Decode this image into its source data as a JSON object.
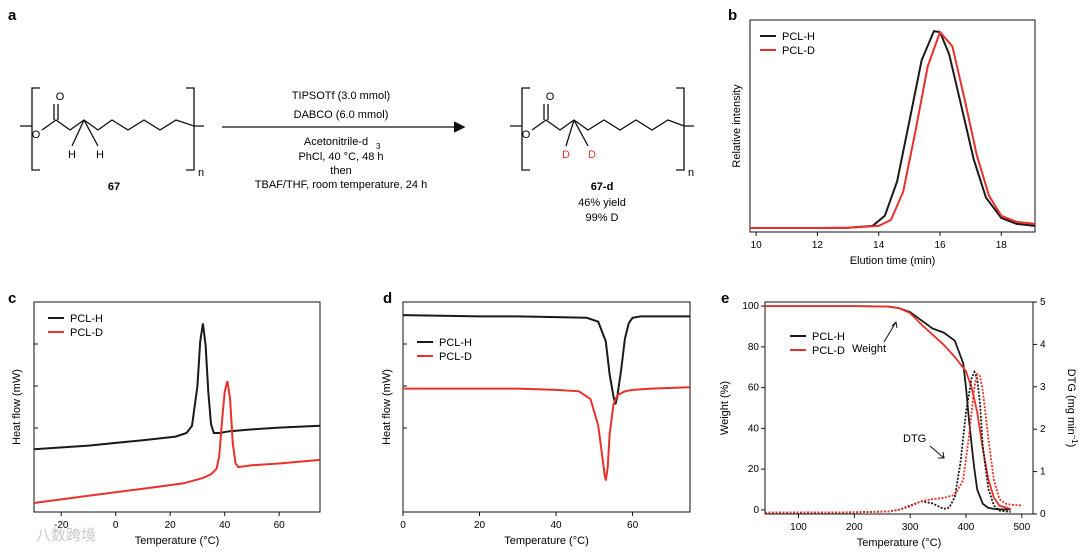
{
  "panel_letters": {
    "a": "a",
    "b": "b",
    "c": "c",
    "d": "d",
    "e": "e"
  },
  "scheme": {
    "reactant_label": "67",
    "product_label": "67-d",
    "subscript_n": "n",
    "atom_O": "O",
    "atom_H": "H",
    "atom_D": "D",
    "conditions": [
      "TIPSOTf (3.0 mmol)",
      "DABCO (6.0 mmol)",
      "Acetonitrile-d",
      "PhCl, 40 °C, 48 h",
      "then",
      "TBAF/THF, room temperature, 24 h"
    ],
    "conditions_sub": "3",
    "yield": "46% yield",
    "deuteration": "99% D"
  },
  "colors": {
    "pcl_h": "#1a1a1a",
    "pcl_d": "#e8312a"
  },
  "watermark": "八数跨境",
  "chart_data": [
    {
      "id": "b",
      "type": "line",
      "xlabel": "Elution time (min)",
      "ylabel": "Relative intensity",
      "xlim": [
        9.8,
        19.1
      ],
      "xticks": [
        10,
        12,
        14,
        16,
        18
      ],
      "legend_position": "top-left",
      "series": [
        {
          "name": "PCL-H",
          "x": [
            9.8,
            12,
            13,
            13.8,
            14.2,
            14.6,
            15,
            15.4,
            15.8,
            16.0,
            16.3,
            16.7,
            17.1,
            17.5,
            18,
            18.5,
            19.1
          ],
          "y": [
            0.02,
            0.02,
            0.021,
            0.03,
            0.08,
            0.25,
            0.55,
            0.85,
            0.995,
            0.99,
            0.88,
            0.62,
            0.36,
            0.17,
            0.07,
            0.04,
            0.03
          ]
        },
        {
          "name": "PCL-D",
          "x": [
            9.8,
            12,
            13,
            14,
            14.4,
            14.8,
            15.2,
            15.6,
            16.0,
            16.4,
            16.8,
            17.2,
            17.6,
            18,
            18.5,
            19.1
          ],
          "y": [
            0.02,
            0.02,
            0.021,
            0.03,
            0.06,
            0.2,
            0.5,
            0.82,
            0.99,
            0.92,
            0.66,
            0.38,
            0.18,
            0.08,
            0.05,
            0.04
          ]
        }
      ]
    },
    {
      "id": "c",
      "type": "line",
      "xlabel": "Temperature (°C)",
      "ylabel": "Heat flow (mW)",
      "xlim": [
        -30,
        75
      ],
      "xticks": [
        -20,
        0,
        20,
        40,
        60
      ],
      "legend_position": "top-left",
      "series": [
        {
          "name": "PCL-H",
          "x": [
            -30,
            -10,
            10,
            22,
            26,
            28,
            30,
            31,
            32,
            33,
            34,
            35,
            36,
            38,
            42,
            50,
            60,
            75
          ],
          "y": [
            0.0,
            0.02,
            0.05,
            0.07,
            0.09,
            0.13,
            0.35,
            0.6,
            0.7,
            0.58,
            0.32,
            0.14,
            0.09,
            0.09,
            0.1,
            0.11,
            0.12,
            0.13
          ]
        },
        {
          "name": "PCL-D",
          "x": [
            -30,
            -10,
            10,
            25,
            32,
            35,
            37,
            38,
            39,
            40,
            41,
            42,
            43,
            44,
            45,
            50,
            60,
            75
          ],
          "y": [
            0.0,
            0.04,
            0.08,
            0.11,
            0.14,
            0.16,
            0.19,
            0.26,
            0.45,
            0.62,
            0.68,
            0.58,
            0.33,
            0.22,
            0.2,
            0.21,
            0.22,
            0.24
          ]
        }
      ]
    },
    {
      "id": "d",
      "type": "line",
      "xlabel": "Temperature (°C)",
      "ylabel": "Heat flow (mW)",
      "xlim": [
        0,
        75
      ],
      "xticks": [
        0,
        20,
        40,
        60
      ],
      "legend_position": "top-left",
      "series": [
        {
          "name": "PCL-H",
          "x": [
            0,
            10,
            20,
            30,
            40,
            48,
            51,
            53,
            54,
            55,
            55.5,
            56,
            57,
            58,
            59,
            60,
            62,
            65,
            75
          ],
          "y": [
            0.0,
            -0.005,
            -0.01,
            -0.01,
            -0.015,
            -0.02,
            -0.05,
            -0.2,
            -0.45,
            -0.62,
            -0.68,
            -0.62,
            -0.42,
            -0.18,
            -0.06,
            -0.02,
            -0.01,
            -0.01,
            -0.01
          ]
        },
        {
          "name": "PCL-D",
          "x": [
            0,
            10,
            20,
            30,
            40,
            46,
            49,
            51,
            52,
            52.7,
            53,
            53.5,
            54,
            55,
            56,
            58,
            60,
            65,
            75
          ],
          "y": [
            0.0,
            0.0,
            0.0,
            0.0,
            -0.01,
            -0.02,
            -0.08,
            -0.28,
            -0.5,
            -0.66,
            -0.7,
            -0.6,
            -0.35,
            -0.12,
            -0.05,
            -0.02,
            -0.01,
            0.0,
            0.01
          ]
        }
      ]
    },
    {
      "id": "e",
      "type": "line",
      "xlabel": "Temperature (°C)",
      "ylabel": "Weight (%)",
      "y2label": "DTG (mg min",
      "y2label_sup": "–1",
      "xlim": [
        40,
        520
      ],
      "ylim": [
        -2,
        102
      ],
      "y2lim": [
        0,
        5
      ],
      "xticks": [
        100,
        200,
        300,
        400,
        500
      ],
      "yticks": [
        0,
        20,
        40,
        60,
        80,
        100
      ],
      "y2ticks": [
        0,
        1,
        2,
        3,
        4,
        5
      ],
      "legend_position": "top-center",
      "annotations": [
        "Weight",
        "DTG"
      ],
      "series": [
        {
          "name": "PCL-H",
          "axis": "left",
          "x": [
            40,
            200,
            260,
            280,
            300,
            320,
            340,
            360,
            380,
            395,
            400,
            405,
            410,
            415,
            420,
            430,
            440,
            450,
            460,
            480
          ],
          "y": [
            100,
            100,
            99.8,
            99,
            97,
            93,
            89,
            87,
            83,
            72,
            60,
            45,
            32,
            20,
            10,
            3,
            1,
            0.5,
            0.3,
            0.2
          ]
        },
        {
          "name": "PCL-D",
          "axis": "left",
          "x": [
            40,
            200,
            260,
            280,
            300,
            320,
            340,
            360,
            380,
            400,
            410,
            420,
            430,
            440,
            450,
            460,
            480
          ],
          "y": [
            100,
            100,
            99.8,
            99,
            96.5,
            91,
            86,
            81,
            75,
            68,
            60,
            48,
            30,
            15,
            6,
            2,
            0.5
          ]
        },
        {
          "name": "PCL-H",
          "axis": "right",
          "x": [
            40,
            200,
            260,
            280,
            300,
            320,
            340,
            360,
            370,
            380,
            390,
            400,
            410,
            415,
            420,
            425,
            430,
            440,
            450,
            460,
            480
          ],
          "y": [
            0.03,
            0.04,
            0.06,
            0.1,
            0.2,
            0.3,
            0.25,
            0.12,
            0.15,
            0.4,
            1.2,
            2.4,
            3.2,
            3.35,
            3.2,
            2.6,
            1.6,
            0.6,
            0.2,
            0.08,
            0.05
          ]
        },
        {
          "name": "PCL-D",
          "axis": "right",
          "x": [
            40,
            200,
            260,
            280,
            300,
            320,
            340,
            360,
            380,
            395,
            405,
            415,
            420,
            425,
            430,
            440,
            450,
            460,
            470,
            480,
            500
          ],
          "y": [
            0.03,
            0.04,
            0.06,
            0.1,
            0.18,
            0.3,
            0.35,
            0.38,
            0.45,
            0.8,
            1.8,
            3.0,
            3.3,
            3.25,
            2.9,
            1.8,
            0.8,
            0.35,
            0.25,
            0.22,
            0.2
          ]
        }
      ]
    }
  ]
}
